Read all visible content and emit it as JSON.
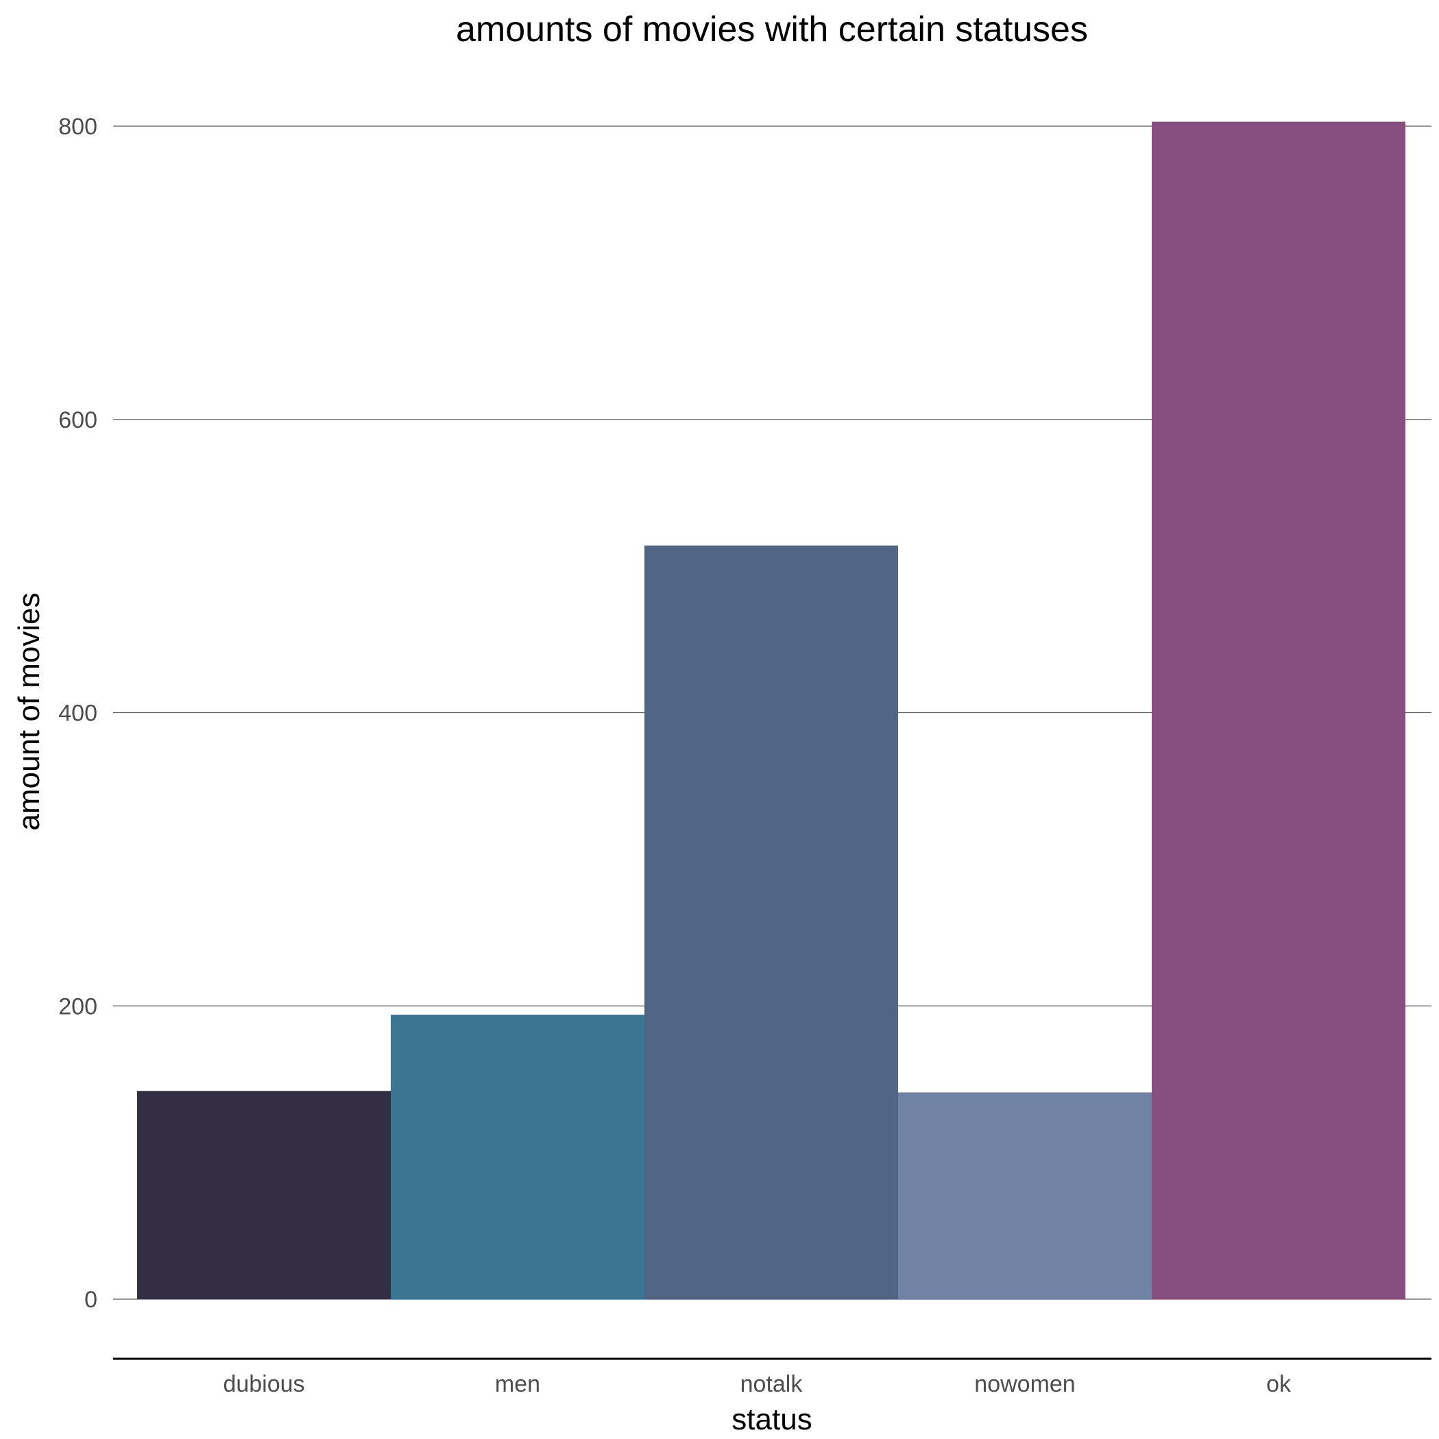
{
  "chart_data": {
    "type": "bar",
    "title": "amounts of movies with certain statuses",
    "xlabel": "status",
    "ylabel": "amount of movies",
    "categories": [
      "dubious",
      "men",
      "notalk",
      "nowomen",
      "ok"
    ],
    "values": [
      142,
      194,
      514,
      141,
      803
    ],
    "colors": [
      "#342e45",
      "#3b7592",
      "#516684",
      "#7183a5",
      "#874e80"
    ],
    "ylim": [
      0,
      803
    ],
    "yticks": [
      0,
      200,
      400,
      600,
      800
    ],
    "grid": true,
    "legend": "none"
  }
}
